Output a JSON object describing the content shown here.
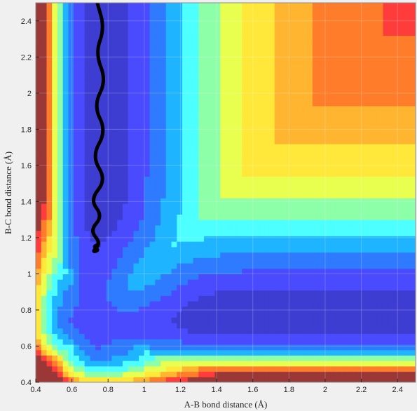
{
  "chart_data": {
    "type": "heatmap",
    "subtype": "filled-contour potential energy surface with trajectory",
    "xlabel": "A-B bond distance (Å)",
    "ylabel": "B-C bond distance (Å)",
    "xlim": [
      0.4,
      2.5
    ],
    "ylim": [
      0.4,
      2.5
    ],
    "xticks": [
      "0.4",
      "0.6",
      "0.8",
      "1",
      "1.2",
      "1.4",
      "1.6",
      "1.8",
      "2",
      "2.2",
      "2.4"
    ],
    "yticks": [
      "0.4",
      "0.6",
      "0.8",
      "1",
      "1.2",
      "1.4",
      "1.6",
      "1.8",
      "2",
      "2.2",
      "2.4"
    ],
    "grid": true,
    "colormap": "jet",
    "colormap_stops": [
      "#3d3dd2",
      "#4a4aff",
      "#2f7bff",
      "#1fb4ff",
      "#4dffff",
      "#8dffa8",
      "#e9ff4f",
      "#ffe83a",
      "#ffb530",
      "#ff7d2a",
      "#ff3c3c",
      "#9a3737"
    ],
    "surface": {
      "equilibrium_distance": 0.74,
      "wall_distance": 0.45,
      "saddle_point": [
        0.93,
        0.93
      ]
    },
    "trajectory": {
      "color": "#000000",
      "x": [
        0.74,
        0.78,
        0.73,
        0.79,
        0.72,
        0.79,
        0.71,
        0.79,
        0.7,
        0.77,
        0.7,
        0.76,
        0.71,
        0.75,
        0.72,
        0.74
      ],
      "y": [
        2.5,
        2.36,
        2.22,
        2.07,
        1.93,
        1.79,
        1.65,
        1.52,
        1.41,
        1.32,
        1.24,
        1.17,
        1.12,
        1.13,
        1.15,
        1.16
      ]
    }
  }
}
